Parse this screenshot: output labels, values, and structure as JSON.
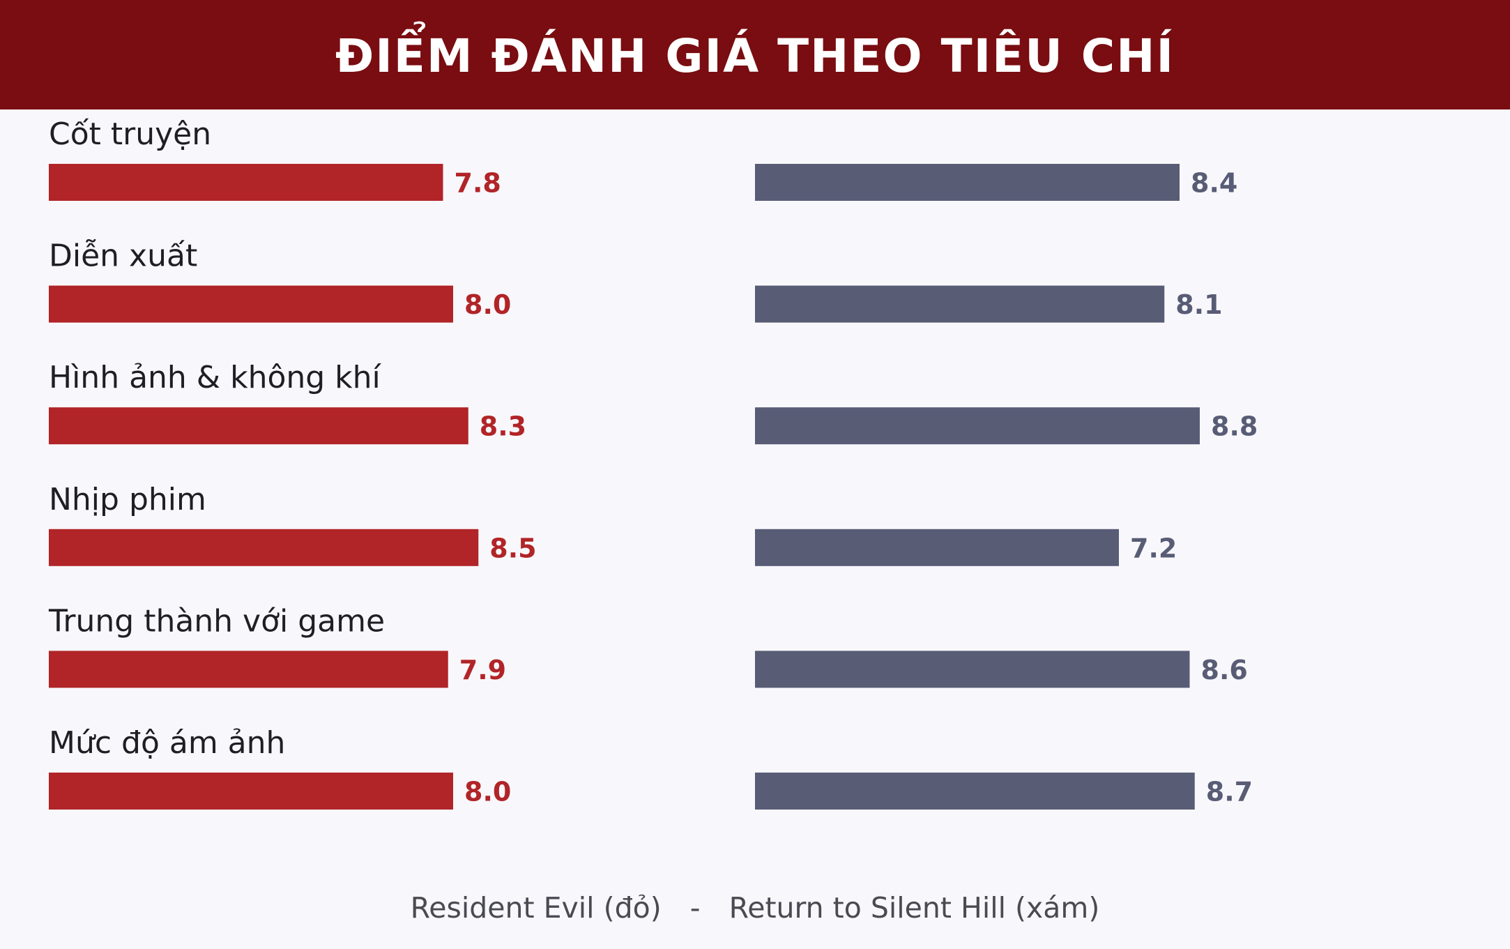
{
  "header": {
    "title": "ĐIỂM ĐÁNH GIÁ THEO TIÊU CHÍ"
  },
  "legend": {
    "series_a": "Resident Evil (đỏ)",
    "separator": "-",
    "series_b": "Return to Silent Hill (xám)"
  },
  "colors": {
    "series_a": "#b12427",
    "series_b": "#585c75",
    "header_bg": "#790d11"
  },
  "chart_data": {
    "type": "bar",
    "orientation": "horizontal",
    "title": "ĐIỂM ĐÁNH GIÁ THEO TIÊU CHÍ",
    "categories": [
      "Cốt truyện",
      "Diễn xuất",
      "Hình ảnh & không khí",
      "Nhịp phim",
      "Trung thành với game",
      "Mức độ ám ảnh"
    ],
    "series": [
      {
        "name": "Resident Evil (đỏ)",
        "color": "#b12427",
        "values": [
          7.8,
          8.0,
          8.3,
          8.5,
          7.9,
          8.0
        ],
        "labels": [
          "7.8",
          "8.0",
          "8.3",
          "8.5",
          "7.9",
          "8.0"
        ]
      },
      {
        "name": "Return to Silent Hill (xám)",
        "color": "#585c75",
        "values": [
          8.4,
          8.1,
          8.8,
          7.2,
          8.6,
          8.7
        ],
        "labels": [
          "8.4",
          "8.1",
          "8.8",
          "7.2",
          "8.6",
          "8.7"
        ]
      }
    ],
    "xlim": [
      0,
      10
    ],
    "grid": false,
    "legend_position": "bottom-center"
  }
}
